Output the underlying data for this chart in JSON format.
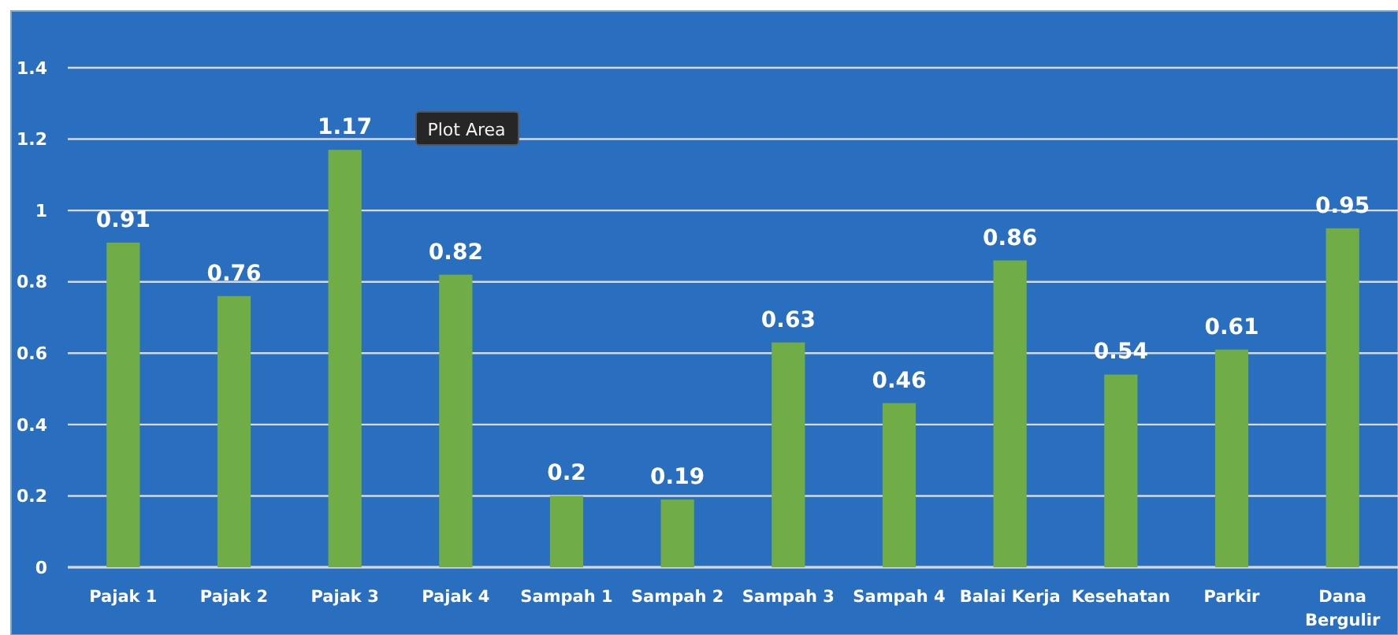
{
  "chart_data": {
    "type": "bar",
    "categories": [
      "Pajak 1",
      "Pajak 2",
      "Pajak 3",
      "Pajak 4",
      "Sampah 1",
      "Sampah 2",
      "Sampah 3",
      "Sampah 4",
      "Balai Kerja",
      "Kesehatan",
      "Parkir",
      "Dana Bergulir"
    ],
    "values": [
      0.91,
      0.76,
      1.17,
      0.82,
      0.2,
      0.19,
      0.63,
      0.46,
      0.86,
      0.54,
      0.61,
      0.95
    ],
    "color": "#70ad47",
    "ylim": [
      0,
      1.4
    ],
    "yticks": [
      0,
      0.2,
      0.4,
      0.6,
      0.8,
      1,
      1.2,
      1.4
    ],
    "grid": "y",
    "data_labels": true,
    "annotations": [
      "Plot Area"
    ]
  }
}
